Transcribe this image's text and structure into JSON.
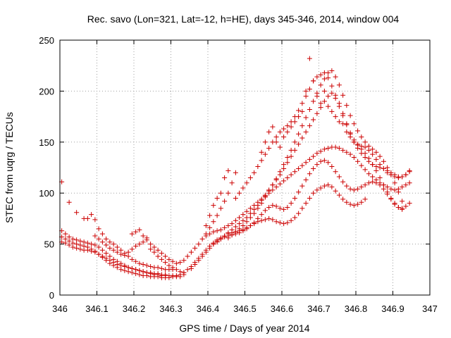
{
  "chart_data": {
    "type": "scatter",
    "title": "Rec. savo (Lon=321, Lat=-12, h=HE), days 345-346, 2014, window 004",
    "xlabel": "GPS time / Days of year 2014",
    "ylabel": "STEC from uqrg / TECUs",
    "xlim": [
      346,
      347
    ],
    "ylim": [
      0,
      250
    ],
    "xticks": [
      "346",
      "346.1",
      "346.2",
      "346.3",
      "346.4",
      "346.5",
      "346.6",
      "346.7",
      "346.8",
      "346.9",
      "347"
    ],
    "yticks": [
      "0",
      "50",
      "100",
      "150",
      "200",
      "250"
    ],
    "grid": true,
    "marker": "plus",
    "color": "#cc0000",
    "series": [
      {
        "x": [
          346.005,
          346.015,
          346.025,
          346.035,
          346.045,
          346.055,
          346.065,
          346.075,
          346.085,
          346.095,
          346.105,
          346.115,
          346.125,
          346.135,
          346.145,
          346.155,
          346.165,
          346.175,
          346.185,
          346.195,
          346.205,
          346.215,
          346.225,
          346.235,
          346.245,
          346.255,
          346.265,
          346.275,
          346.285,
          346.295,
          346.305,
          346.315,
          346.325,
          346.335
        ],
        "y": [
          63,
          60,
          57,
          55,
          54,
          53,
          52,
          51,
          50,
          49,
          47,
          44,
          41,
          38,
          35,
          33,
          31,
          29,
          27,
          26,
          25,
          24,
          23,
          22,
          21,
          20,
          20,
          19,
          19,
          19,
          19,
          19,
          20,
          20
        ]
      },
      {
        "x": [
          346.005,
          346.015,
          346.025,
          346.035,
          346.045,
          346.055,
          346.065,
          346.075,
          346.085,
          346.095,
          346.105,
          346.115,
          346.125,
          346.135,
          346.145,
          346.155,
          346.165,
          346.175,
          346.185,
          346.195,
          346.205,
          346.215,
          346.225,
          346.235,
          346.245,
          346.255,
          346.265,
          346.275,
          346.285,
          346.295,
          346.305,
          346.315,
          346.325
        ],
        "y": [
          57,
          55,
          53,
          51,
          50,
          49,
          48,
          47,
          45,
          43,
          40,
          37,
          34,
          31,
          29,
          27,
          25,
          24,
          23,
          22,
          21,
          20,
          19,
          19,
          18,
          18,
          18,
          17,
          17,
          17,
          18,
          18,
          18
        ]
      },
      {
        "x": [
          346.005,
          346.015,
          346.025,
          346.035,
          346.045,
          346.055,
          346.065,
          346.075,
          346.085,
          346.095,
          346.105,
          346.115,
          346.125,
          346.135,
          346.145,
          346.155,
          346.165,
          346.175,
          346.185,
          346.195,
          346.205,
          346.215,
          346.225,
          346.235,
          346.245,
          346.255,
          346.265,
          346.275,
          346.285
        ],
        "y": [
          52,
          51,
          49,
          47,
          46,
          45,
          44,
          44,
          43,
          42,
          40,
          38,
          36,
          34,
          32,
          30,
          29,
          28,
          27,
          26,
          25,
          24,
          23,
          22,
          22,
          21,
          21,
          20,
          20
        ]
      },
      {
        "x": [
          346.005,
          346.025,
          346.045,
          346.065,
          346.075,
          346.085,
          346.095,
          346.105,
          346.115,
          346.125,
          346.135,
          346.145,
          346.155,
          346.165,
          346.175,
          346.185,
          346.195,
          346.205,
          346.215,
          346.225,
          346.235,
          346.245,
          346.255,
          346.265,
          346.275,
          346.285,
          346.295,
          346.305
        ],
        "y": [
          111,
          91,
          81,
          75,
          75,
          79,
          74,
          65,
          60,
          55,
          52,
          50,
          47,
          44,
          41,
          38,
          35,
          33,
          31,
          30,
          29,
          28,
          27,
          27,
          26,
          25,
          25,
          25
        ]
      },
      {
        "x": [
          346.095,
          346.105,
          346.115,
          346.125,
          346.135,
          346.145,
          346.155,
          346.165,
          346.175,
          346.185,
          346.195,
          346.205,
          346.215,
          346.225,
          346.235,
          346.245,
          346.255,
          346.265,
          346.275,
          346.285,
          346.295,
          346.305,
          346.315,
          346.325,
          346.335
        ],
        "y": [
          58,
          55,
          52,
          49,
          46,
          44,
          42,
          40,
          39,
          42,
          45,
          48,
          50,
          52,
          56,
          45,
          42,
          38,
          35,
          32,
          29,
          27,
          25,
          23,
          22
        ]
      },
      {
        "x": [
          346.195,
          346.205,
          346.215,
          346.225,
          346.235,
          346.245,
          346.255,
          346.265,
          346.275,
          346.285,
          346.295,
          346.305,
          346.315,
          346.325,
          346.335,
          346.345,
          346.355,
          346.365,
          346.375,
          346.385,
          346.395,
          346.405,
          346.415,
          346.425,
          346.435,
          346.445,
          346.455,
          346.465,
          346.475
        ],
        "y": [
          60,
          62,
          64,
          58,
          54,
          50,
          47,
          44,
          41,
          38,
          35,
          33,
          31,
          32,
          34,
          38,
          42,
          46,
          50,
          55,
          60,
          66,
          72,
          78,
          85,
          92,
          100,
          110,
          120
        ]
      },
      {
        "x": [
          346.335,
          346.345,
          346.355,
          346.365,
          346.375,
          346.385,
          346.395,
          346.405,
          346.415,
          346.425,
          346.435,
          346.445,
          346.455,
          346.465,
          346.475,
          346.485,
          346.495,
          346.505,
          346.515,
          346.525,
          346.535,
          346.545,
          346.555,
          346.565,
          346.575,
          346.585,
          346.595,
          346.605,
          346.615,
          346.625,
          346.635,
          346.645,
          346.655,
          346.665,
          346.675,
          346.685,
          346.695,
          346.705,
          346.715,
          346.725,
          346.735,
          346.745,
          346.755,
          346.765,
          346.775,
          346.785,
          346.795,
          346.805,
          346.815,
          346.825
        ],
        "y": [
          22,
          25,
          28,
          32,
          36,
          40,
          44,
          48,
          51,
          54,
          56,
          58,
          60,
          61,
          62,
          63,
          64,
          66,
          68,
          70,
          72,
          73,
          74,
          75,
          74,
          72,
          71,
          70,
          71,
          73,
          76,
          80,
          85,
          90,
          95,
          100,
          103,
          105,
          107,
          108,
          106,
          102,
          98,
          94,
          91,
          89,
          88,
          89,
          91,
          94
        ]
      },
      {
        "x": [
          346.355,
          346.365,
          346.375,
          346.385,
          346.395,
          346.405,
          346.415,
          346.425,
          346.435,
          346.445,
          346.455,
          346.465,
          346.475,
          346.485,
          346.495,
          346.505,
          346.515,
          346.525,
          346.535,
          346.545,
          346.555,
          346.565,
          346.575,
          346.585,
          346.595,
          346.605,
          346.615,
          346.625,
          346.635,
          346.645,
          346.655,
          346.665,
          346.675,
          346.685,
          346.695,
          346.705,
          346.715,
          346.725,
          346.735,
          346.745,
          346.755,
          346.765,
          346.775,
          346.785,
          346.795,
          346.805,
          346.815,
          346.825,
          346.835,
          346.845,
          346.855,
          346.865,
          346.875,
          346.885,
          346.895,
          346.905,
          346.915,
          346.925,
          346.935,
          346.945
        ],
        "y": [
          26,
          30,
          34,
          38,
          42,
          46,
          50,
          53,
          55,
          57,
          58,
          59,
          60,
          61,
          63,
          65,
          68,
          71,
          75,
          79,
          83,
          86,
          88,
          87,
          85,
          84,
          86,
          90,
          95,
          101,
          107,
          113,
          119,
          124,
          128,
          131,
          132,
          130,
          126,
          121,
          116,
          111,
          107,
          104,
          103,
          104,
          106,
          108,
          110,
          111,
          110,
          108,
          104,
          99,
          94,
          89,
          86,
          85,
          87,
          90
        ]
      },
      {
        "x": [
          346.395,
          346.405,
          346.415,
          346.425,
          346.435,
          346.445,
          346.455,
          346.465,
          346.475,
          346.485,
          346.495,
          346.505,
          346.515,
          346.525,
          346.535,
          346.545,
          346.555,
          346.565,
          346.575,
          346.585,
          346.595,
          346.605,
          346.615,
          346.625,
          346.635,
          346.645,
          346.655,
          346.665,
          346.675,
          346.685,
          346.695,
          346.705,
          346.715,
          346.725,
          346.735,
          346.745,
          346.755,
          346.765,
          346.775,
          346.785,
          346.795,
          346.805,
          346.815,
          346.825,
          346.835,
          346.845,
          346.855,
          346.865,
          346.875,
          346.885,
          346.895,
          346.905,
          346.915,
          346.925,
          346.935,
          346.945
        ],
        "y": [
          58,
          60,
          62,
          63,
          64,
          66,
          68,
          70,
          73,
          76,
          79,
          82,
          85,
          88,
          91,
          94,
          97,
          100,
          103,
          106,
          109,
          112,
          115,
          118,
          121,
          124,
          127,
          130,
          133,
          136,
          139,
          141,
          143,
          144,
          145,
          145,
          144,
          142,
          140,
          138,
          135,
          131,
          127,
          123,
          119,
          116,
          113,
          110,
          108,
          106,
          104,
          103,
          104,
          106,
          108,
          110
        ]
      },
      {
        "x": [
          346.395,
          346.405,
          346.415,
          346.425,
          346.435,
          346.445,
          346.455,
          346.475,
          346.485,
          346.495,
          346.505,
          346.515,
          346.525,
          346.535,
          346.545,
          346.555,
          346.565,
          346.575,
          346.585,
          346.595,
          346.605,
          346.615,
          346.625,
          346.635,
          346.645,
          346.655,
          346.665,
          346.675,
          346.685,
          346.695,
          346.705,
          346.715,
          346.725,
          346.735,
          346.745,
          346.755,
          346.765,
          346.775,
          346.785,
          346.795,
          346.805,
          346.815,
          346.825,
          346.835,
          346.845,
          346.855,
          346.865,
          346.875,
          346.885,
          346.895,
          346.905,
          346.915,
          346.925,
          346.935,
          346.945
        ],
        "y": [
          68,
          78,
          88,
          95,
          100,
          115,
          122,
          95,
          100,
          105,
          110,
          115,
          120,
          126,
          132,
          138,
          144,
          150,
          155,
          160,
          163,
          166,
          170,
          175,
          181,
          188,
          195,
          202,
          210,
          214,
          216,
          218,
          213,
          205,
          196,
          188,
          178,
          168,
          158,
          150,
          144,
          139,
          135,
          131,
          128,
          126,
          125,
          124,
          122,
          120,
          118,
          116,
          116,
          118,
          121
        ]
      },
      {
        "x": [
          346.415,
          346.425,
          346.435,
          346.445,
          346.455,
          346.465,
          346.475,
          346.485,
          346.495,
          346.505,
          346.515,
          346.525,
          346.535,
          346.545,
          346.555,
          346.565,
          346.575,
          346.585,
          346.595,
          346.605,
          346.615,
          346.625,
          346.635,
          346.645,
          346.655,
          346.665,
          346.675,
          346.685,
          346.695,
          346.705,
          346.715,
          346.725,
          346.735,
          346.745,
          346.755,
          346.765,
          346.775,
          346.785,
          346.795,
          346.805,
          346.815,
          346.825,
          346.835,
          346.845,
          346.855,
          346.865,
          346.875,
          346.885,
          346.895,
          346.905,
          346.915,
          346.925
        ],
        "y": [
          50,
          52,
          55,
          58,
          61,
          64,
          67,
          70,
          73,
          76,
          80,
          84,
          88,
          93,
          98,
          103,
          108,
          113,
          118,
          124,
          130,
          136,
          142,
          148,
          154,
          160,
          166,
          172,
          178,
          184,
          190,
          195,
          198,
          193,
          185,
          176,
          167,
          159,
          152,
          147,
          143,
          139,
          134,
          128,
          122,
          115,
          108,
          101,
          95,
          90,
          86,
          84
        ]
      },
      {
        "x": [
          346.455,
          346.465,
          346.475,
          346.485,
          346.495,
          346.505,
          346.515,
          346.525,
          346.535,
          346.545,
          346.555,
          346.565,
          346.575,
          346.585,
          346.595,
          346.605,
          346.615,
          346.625,
          346.635,
          346.645,
          346.655,
          346.665,
          346.675,
          346.685,
          346.695,
          346.705,
          346.715,
          346.725,
          346.735,
          346.745,
          346.755,
          346.765,
          346.775,
          346.785,
          346.795,
          346.805,
          346.815,
          346.825,
          346.835,
          346.845,
          346.855,
          346.865,
          346.875,
          346.885,
          346.895,
          346.905,
          346.915,
          346.925
        ],
        "y": [
          56,
          59,
          62,
          65,
          68,
          72,
          76,
          80,
          85,
          90,
          96,
          102,
          108,
          114,
          121,
          128,
          135,
          142,
          150,
          158,
          166,
          174,
          182,
          190,
          198,
          206,
          212,
          218,
          220,
          214,
          206,
          196,
          186,
          176,
          168,
          161,
          155,
          150,
          146,
          143,
          140,
          136,
          131,
          125,
          118,
          110,
          101,
          92
        ]
      },
      {
        "x": [
          346.545,
          346.555,
          346.565,
          346.575,
          346.585,
          346.595,
          346.605,
          346.615,
          346.625,
          346.635,
          346.645,
          346.655,
          346.665,
          346.675,
          346.685,
          346.695,
          346.705,
          346.715,
          346.725,
          346.735,
          346.745,
          346.755,
          346.765,
          346.775,
          346.785,
          346.795,
          346.805,
          346.815,
          346.825,
          346.835,
          346.845,
          346.855,
          346.865,
          346.875,
          346.885,
          346.895,
          346.905,
          346.915,
          346.925,
          346.935,
          346.945
        ],
        "y": [
          140,
          150,
          160,
          165,
          150,
          145,
          155,
          160,
          165,
          170,
          175,
          180,
          200,
          232,
          210,
          195,
          188,
          200,
          185,
          180,
          175,
          170,
          168,
          160,
          155,
          150,
          148,
          146,
          145,
          142,
          138,
          133,
          128,
          124,
          120,
          118,
          116,
          115,
          116,
          118,
          122
        ]
      }
    ]
  }
}
